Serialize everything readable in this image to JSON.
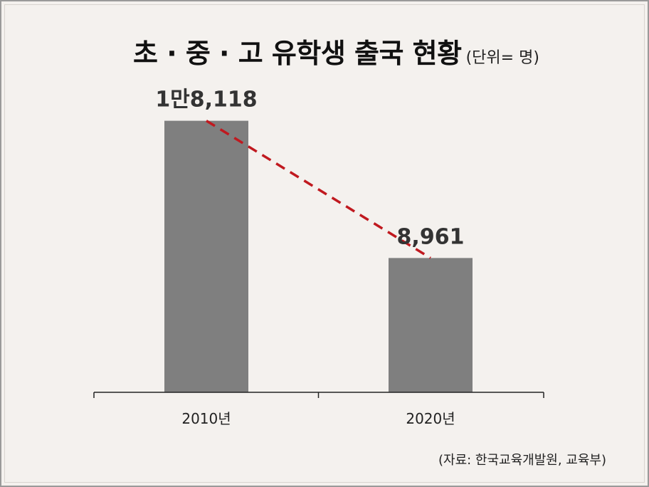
{
  "header": {
    "title": "초 · 중 · 고 유학생 출국 현황",
    "unit": "(단위= 명)"
  },
  "footer": {
    "source": "(자료: 한국교육개발원, 교육부)"
  },
  "colors": {
    "bar": "#7f7f7f",
    "trend_line": "#c0191f",
    "axis": "#222222"
  },
  "chart_data": {
    "type": "bar",
    "categories": [
      "2010년",
      "2020년"
    ],
    "values": [
      18118,
      8961
    ],
    "data_labels": [
      "1만8,118",
      "8,961"
    ],
    "ylim": [
      0,
      20000
    ],
    "grid": false,
    "legend": "none",
    "trend_line": "dashed"
  }
}
